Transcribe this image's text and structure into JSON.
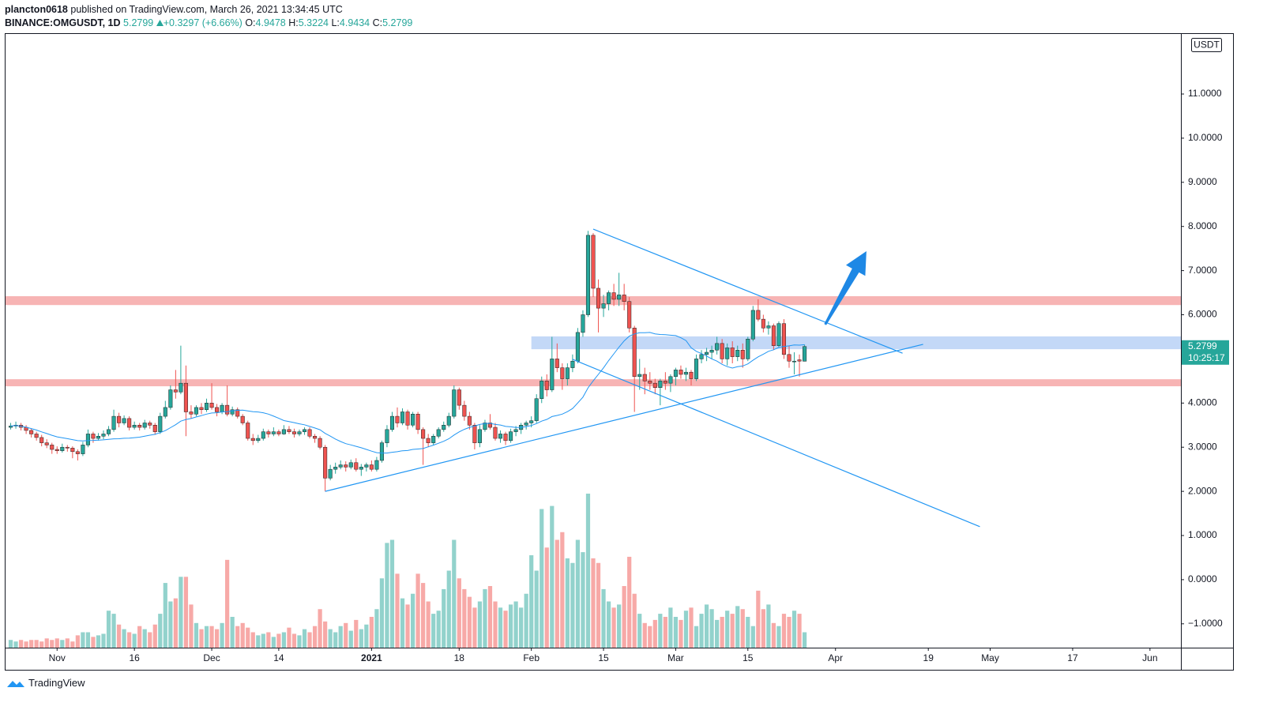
{
  "header": {
    "author": "plancton0618",
    "published": "published on TradingView.com, March 26, 2021 13:34:45 UTC",
    "symbol": "BINANCE:OMGUSDT, 1D",
    "last": "5.2799",
    "change": "+0.3297 (+6.66%)",
    "ohlc_legend": [
      {
        "key": "O:",
        "value": "4.9478"
      },
      {
        "key": "H:",
        "value": "5.3224"
      },
      {
        "key": "L:",
        "value": "4.9434"
      },
      {
        "key": "C:",
        "value": "5.2799"
      }
    ]
  },
  "footer": {
    "brand": "TradingView"
  },
  "chart_data": {
    "type": "candlestick",
    "currency": "USDT",
    "price_label": "5.2799",
    "countdown": "10:25:17",
    "up_color": "#26a69a",
    "down_color": "#ef5350",
    "ma_color": "#2196f3",
    "xlim": [
      "2020-10-22",
      "2021-06-07"
    ],
    "ylim": [
      -1.54,
      12.36
    ],
    "yticks": [
      {
        "value": -1,
        "label": "−1.0000"
      },
      {
        "value": 0,
        "label": "0.0000"
      },
      {
        "value": 1,
        "label": "1.0000"
      },
      {
        "value": 2,
        "label": "2.0000"
      },
      {
        "value": 3,
        "label": "3.0000"
      },
      {
        "value": 4,
        "label": "4.0000"
      },
      {
        "value": 6,
        "label": "6.0000"
      },
      {
        "value": 7,
        "label": "7.0000"
      },
      {
        "value": 8,
        "label": "8.0000"
      },
      {
        "value": 9,
        "label": "9.0000"
      },
      {
        "value": 10,
        "label": "10.0000"
      },
      {
        "value": 11,
        "label": "11.0000"
      }
    ],
    "xticks": [
      {
        "value": "2020-11-01",
        "label": "Nov"
      },
      {
        "value": "2020-11-16",
        "label": "16"
      },
      {
        "value": "2020-12-01",
        "label": "Dec"
      },
      {
        "value": "2020-12-14",
        "label": "14"
      },
      {
        "value": "2021-01-01",
        "label": "2021"
      },
      {
        "value": "2021-01-18",
        "label": "18"
      },
      {
        "value": "2021-02-01",
        "label": "Feb"
      },
      {
        "value": "2021-02-15",
        "label": "15"
      },
      {
        "value": "2021-03-01",
        "label": "Mar"
      },
      {
        "value": "2021-03-15",
        "label": "15"
      },
      {
        "value": "2021-04-01",
        "label": "Apr"
      },
      {
        "value": "2021-04-19",
        "label": "19"
      },
      {
        "value": "2021-05-01",
        "label": "May"
      },
      {
        "value": "2021-05-17",
        "label": "17"
      },
      {
        "value": "2021-06-01",
        "label": "Jun"
      }
    ],
    "zones": [
      {
        "low": 6.22,
        "high": 6.42,
        "color": "#f7b4b4"
      },
      {
        "from": "2021-02-01",
        "low": 5.22,
        "high": 5.51,
        "color": "#c3d8f7"
      },
      {
        "low": 4.38,
        "high": 4.54,
        "color": "#f7b4b4"
      }
    ],
    "trendlines": [
      {
        "x": [
          "2021-02-13",
          "2021-04-14"
        ],
        "y": [
          7.94,
          5.13
        ]
      },
      {
        "x": [
          "2021-02-09",
          "2021-04-29"
        ],
        "y": [
          4.99,
          1.2
        ]
      },
      {
        "x": [
          "2020-12-23",
          "2021-04-18"
        ],
        "y": [
          2.0,
          5.33
        ]
      }
    ],
    "arrow": {
      "x": [
        "2021-03-30",
        "2021-04-07"
      ],
      "y": [
        5.78,
        7.44
      ],
      "color": "#1e88e5"
    },
    "x": [
      "2020-10-23",
      "2020-10-24",
      "2020-10-25",
      "2020-10-26",
      "2020-10-27",
      "2020-10-28",
      "2020-10-29",
      "2020-10-30",
      "2020-10-31",
      "2020-11-01",
      "2020-11-02",
      "2020-11-03",
      "2020-11-04",
      "2020-11-05",
      "2020-11-06",
      "2020-11-07",
      "2020-11-08",
      "2020-11-09",
      "2020-11-10",
      "2020-11-11",
      "2020-11-12",
      "2020-11-13",
      "2020-11-14",
      "2020-11-15",
      "2020-11-16",
      "2020-11-17",
      "2020-11-18",
      "2020-11-19",
      "2020-11-20",
      "2020-11-21",
      "2020-11-22",
      "2020-11-23",
      "2020-11-24",
      "2020-11-25",
      "2020-11-26",
      "2020-11-27",
      "2020-11-28",
      "2020-11-29",
      "2020-11-30",
      "2020-12-01",
      "2020-12-02",
      "2020-12-03",
      "2020-12-04",
      "2020-12-05",
      "2020-12-06",
      "2020-12-07",
      "2020-12-08",
      "2020-12-09",
      "2020-12-10",
      "2020-12-11",
      "2020-12-12",
      "2020-12-13",
      "2020-12-14",
      "2020-12-15",
      "2020-12-16",
      "2020-12-17",
      "2020-12-18",
      "2020-12-19",
      "2020-12-20",
      "2020-12-21",
      "2020-12-22",
      "2020-12-23",
      "2020-12-24",
      "2020-12-25",
      "2020-12-26",
      "2020-12-27",
      "2020-12-28",
      "2020-12-29",
      "2020-12-30",
      "2020-12-31",
      "2021-01-01",
      "2021-01-02",
      "2021-01-03",
      "2021-01-04",
      "2021-01-05",
      "2021-01-06",
      "2021-01-07",
      "2021-01-08",
      "2021-01-09",
      "2021-01-10",
      "2021-01-11",
      "2021-01-12",
      "2021-01-13",
      "2021-01-14",
      "2021-01-15",
      "2021-01-16",
      "2021-01-17",
      "2021-01-18",
      "2021-01-19",
      "2021-01-20",
      "2021-01-21",
      "2021-01-22",
      "2021-01-23",
      "2021-01-24",
      "2021-01-25",
      "2021-01-26",
      "2021-01-27",
      "2021-01-28",
      "2021-01-29",
      "2021-01-30",
      "2021-01-31",
      "2021-02-01",
      "2021-02-02",
      "2021-02-03",
      "2021-02-04",
      "2021-02-05",
      "2021-02-06",
      "2021-02-07",
      "2021-02-08",
      "2021-02-09",
      "2021-02-10",
      "2021-02-11",
      "2021-02-12",
      "2021-02-13",
      "2021-02-14",
      "2021-02-15",
      "2021-02-16",
      "2021-02-17",
      "2021-02-18",
      "2021-02-19",
      "2021-02-20",
      "2021-02-21",
      "2021-02-22",
      "2021-02-23",
      "2021-02-24",
      "2021-02-25",
      "2021-02-26",
      "2021-02-27",
      "2021-02-28",
      "2021-03-01",
      "2021-03-02",
      "2021-03-03",
      "2021-03-04",
      "2021-03-05",
      "2021-03-06",
      "2021-03-07",
      "2021-03-08",
      "2021-03-09",
      "2021-03-10",
      "2021-03-11",
      "2021-03-12",
      "2021-03-13",
      "2021-03-14",
      "2021-03-15",
      "2021-03-16",
      "2021-03-17",
      "2021-03-18",
      "2021-03-19",
      "2021-03-20",
      "2021-03-21",
      "2021-03-22",
      "2021-03-23",
      "2021-03-24",
      "2021-03-25",
      "2021-03-26"
    ],
    "ohlc": [
      [
        3.45,
        3.55,
        3.4,
        3.48
      ],
      [
        3.48,
        3.58,
        3.42,
        3.5
      ],
      [
        3.5,
        3.55,
        3.38,
        3.45
      ],
      [
        3.45,
        3.5,
        3.3,
        3.38
      ],
      [
        3.38,
        3.42,
        3.22,
        3.3
      ],
      [
        3.3,
        3.35,
        3.15,
        3.22
      ],
      [
        3.22,
        3.28,
        3.02,
        3.1
      ],
      [
        3.1,
        3.18,
        2.98,
        3.05
      ],
      [
        3.05,
        3.1,
        2.85,
        2.95
      ],
      [
        2.95,
        3.02,
        2.85,
        2.92
      ],
      [
        2.92,
        3.08,
        2.88,
        3.0
      ],
      [
        3.0,
        3.05,
        2.9,
        2.98
      ],
      [
        2.98,
        3.02,
        2.75,
        2.9
      ],
      [
        2.9,
        2.95,
        2.7,
        2.85
      ],
      [
        2.85,
        3.12,
        2.8,
        3.05
      ],
      [
        3.05,
        3.4,
        3.0,
        3.3
      ],
      [
        3.3,
        3.35,
        3.1,
        3.2
      ],
      [
        3.2,
        3.32,
        3.15,
        3.25
      ],
      [
        3.25,
        3.38,
        3.18,
        3.3
      ],
      [
        3.3,
        3.48,
        3.25,
        3.4
      ],
      [
        3.4,
        3.85,
        3.35,
        3.7
      ],
      [
        3.7,
        3.78,
        3.45,
        3.55
      ],
      [
        3.55,
        3.72,
        3.5,
        3.65
      ],
      [
        3.65,
        3.7,
        3.38,
        3.45
      ],
      [
        3.45,
        3.58,
        3.4,
        3.5
      ],
      [
        3.5,
        3.55,
        3.38,
        3.45
      ],
      [
        3.45,
        3.62,
        3.4,
        3.55
      ],
      [
        3.55,
        3.6,
        3.42,
        3.5
      ],
      [
        3.5,
        3.55,
        3.28,
        3.35
      ],
      [
        3.35,
        3.78,
        3.3,
        3.7
      ],
      [
        3.7,
        4.05,
        3.65,
        3.9
      ],
      [
        3.9,
        4.4,
        3.85,
        4.3
      ],
      [
        4.3,
        4.75,
        4.1,
        4.25
      ],
      [
        4.25,
        5.3,
        4.2,
        4.45
      ],
      [
        4.45,
        4.85,
        3.25,
        3.8
      ],
      [
        3.8,
        3.95,
        3.65,
        3.75
      ],
      [
        3.75,
        3.95,
        3.7,
        3.9
      ],
      [
        3.9,
        4.0,
        3.75,
        3.85
      ],
      [
        3.85,
        4.1,
        3.8,
        4.0
      ],
      [
        4.0,
        4.45,
        3.85,
        3.9
      ],
      [
        3.9,
        3.98,
        3.7,
        3.8
      ],
      [
        3.8,
        4.0,
        3.75,
        3.95
      ],
      [
        3.95,
        4.4,
        3.7,
        3.75
      ],
      [
        3.75,
        3.92,
        3.7,
        3.85
      ],
      [
        3.85,
        3.9,
        3.65,
        3.7
      ],
      [
        3.7,
        3.75,
        3.5,
        3.55
      ],
      [
        3.55,
        3.6,
        3.15,
        3.2
      ],
      [
        3.2,
        3.3,
        3.05,
        3.15
      ],
      [
        3.15,
        3.28,
        3.1,
        3.2
      ],
      [
        3.2,
        3.42,
        3.15,
        3.35
      ],
      [
        3.35,
        3.4,
        3.22,
        3.3
      ],
      [
        3.3,
        3.45,
        3.25,
        3.35
      ],
      [
        3.35,
        3.4,
        3.25,
        3.3
      ],
      [
        3.3,
        3.5,
        3.28,
        3.4
      ],
      [
        3.4,
        3.48,
        3.3,
        3.35
      ],
      [
        3.35,
        3.42,
        3.22,
        3.3
      ],
      [
        3.3,
        3.4,
        3.25,
        3.35
      ],
      [
        3.35,
        3.45,
        3.28,
        3.4
      ],
      [
        3.4,
        3.45,
        3.2,
        3.25
      ],
      [
        3.25,
        3.3,
        3.1,
        3.2
      ],
      [
        3.2,
        3.25,
        2.95,
        3.0
      ],
      [
        3.0,
        3.05,
        2.0,
        2.3
      ],
      [
        2.3,
        2.6,
        2.25,
        2.5
      ],
      [
        2.5,
        2.65,
        2.4,
        2.55
      ],
      [
        2.55,
        2.7,
        2.5,
        2.6
      ],
      [
        2.6,
        2.68,
        2.45,
        2.55
      ],
      [
        2.55,
        2.72,
        2.5,
        2.65
      ],
      [
        2.65,
        2.75,
        2.45,
        2.5
      ],
      [
        2.5,
        2.62,
        2.35,
        2.55
      ],
      [
        2.55,
        2.65,
        2.45,
        2.6
      ],
      [
        2.6,
        2.7,
        2.45,
        2.5
      ],
      [
        2.5,
        2.78,
        2.45,
        2.7
      ],
      [
        2.7,
        3.15,
        2.65,
        3.1
      ],
      [
        3.1,
        3.5,
        3.0,
        3.4
      ],
      [
        3.4,
        3.8,
        3.35,
        3.7
      ],
      [
        3.7,
        3.9,
        3.45,
        3.55
      ],
      [
        3.55,
        3.88,
        3.5,
        3.8
      ],
      [
        3.8,
        3.85,
        3.4,
        3.5
      ],
      [
        3.5,
        3.8,
        3.45,
        3.75
      ],
      [
        3.75,
        3.8,
        3.3,
        3.4
      ],
      [
        3.4,
        3.45,
        2.6,
        3.2
      ],
      [
        3.2,
        3.3,
        3.0,
        3.1
      ],
      [
        3.1,
        3.3,
        3.05,
        3.25
      ],
      [
        3.25,
        3.45,
        3.2,
        3.4
      ],
      [
        3.4,
        3.58,
        3.35,
        3.5
      ],
      [
        3.5,
        3.78,
        3.45,
        3.7
      ],
      [
        3.7,
        4.4,
        3.65,
        4.3
      ],
      [
        4.3,
        4.35,
        3.85,
        3.95
      ],
      [
        3.95,
        4.05,
        3.6,
        3.7
      ],
      [
        3.7,
        3.8,
        3.4,
        3.5
      ],
      [
        3.5,
        3.55,
        2.95,
        3.1
      ],
      [
        3.1,
        3.5,
        3.0,
        3.4
      ],
      [
        3.4,
        3.62,
        3.35,
        3.55
      ],
      [
        3.55,
        3.75,
        3.4,
        3.45
      ],
      [
        3.45,
        3.55,
        3.15,
        3.2
      ],
      [
        3.2,
        3.38,
        3.1,
        3.3
      ],
      [
        3.3,
        3.35,
        3.05,
        3.15
      ],
      [
        3.15,
        3.42,
        3.1,
        3.35
      ],
      [
        3.35,
        3.48,
        3.25,
        3.4
      ],
      [
        3.4,
        3.55,
        3.3,
        3.5
      ],
      [
        3.5,
        3.6,
        3.4,
        3.55
      ],
      [
        3.55,
        3.7,
        3.45,
        3.6
      ],
      [
        3.6,
        4.2,
        3.55,
        4.1
      ],
      [
        4.1,
        4.6,
        4.0,
        4.5
      ],
      [
        4.5,
        4.65,
        4.15,
        4.3
      ],
      [
        4.3,
        5.5,
        4.25,
        5.0
      ],
      [
        5.0,
        5.35,
        4.7,
        4.8
      ],
      [
        4.8,
        4.9,
        4.3,
        4.55
      ],
      [
        4.55,
        4.9,
        4.4,
        4.8
      ],
      [
        4.8,
        5.1,
        4.7,
        4.95
      ],
      [
        4.95,
        5.7,
        4.9,
        5.6
      ],
      [
        5.6,
        6.1,
        5.5,
        6.0
      ],
      [
        6.0,
        7.9,
        5.95,
        7.8
      ],
      [
        7.8,
        7.85,
        6.4,
        6.6
      ],
      [
        6.6,
        6.8,
        5.6,
        6.15
      ],
      [
        6.15,
        6.45,
        5.95,
        6.25
      ],
      [
        6.25,
        6.55,
        6.1,
        6.5
      ],
      [
        6.5,
        6.7,
        6.2,
        6.35
      ],
      [
        6.35,
        6.95,
        6.2,
        6.45
      ],
      [
        6.45,
        6.7,
        6.1,
        6.3
      ],
      [
        6.3,
        6.4,
        5.6,
        5.7
      ],
      [
        5.7,
        5.75,
        3.8,
        4.6
      ],
      [
        4.6,
        5.0,
        4.3,
        4.65
      ],
      [
        4.65,
        4.8,
        4.2,
        4.5
      ],
      [
        4.5,
        4.7,
        4.3,
        4.45
      ],
      [
        4.45,
        4.55,
        4.2,
        4.35
      ],
      [
        4.35,
        4.55,
        3.95,
        4.5
      ],
      [
        4.5,
        4.7,
        4.3,
        4.45
      ],
      [
        4.45,
        4.65,
        4.25,
        4.6
      ],
      [
        4.6,
        4.8,
        4.4,
        4.75
      ],
      [
        4.75,
        4.85,
        4.55,
        4.65
      ],
      [
        4.65,
        4.8,
        4.5,
        4.7
      ],
      [
        4.7,
        4.75,
        4.4,
        4.55
      ],
      [
        4.55,
        5.1,
        4.5,
        5.0
      ],
      [
        5.0,
        5.2,
        4.9,
        5.1
      ],
      [
        5.1,
        5.25,
        4.95,
        5.15
      ],
      [
        5.15,
        5.3,
        5.0,
        5.2
      ],
      [
        5.2,
        5.5,
        5.1,
        5.35
      ],
      [
        5.35,
        5.45,
        4.9,
        5.0
      ],
      [
        5.0,
        5.35,
        4.85,
        5.25
      ],
      [
        5.25,
        5.4,
        4.9,
        5.05
      ],
      [
        5.05,
        5.3,
        4.95,
        5.2
      ],
      [
        5.2,
        5.35,
        4.8,
        5.0
      ],
      [
        5.0,
        5.5,
        4.95,
        5.45
      ],
      [
        5.45,
        6.2,
        5.4,
        6.1
      ],
      [
        6.1,
        6.35,
        5.85,
        5.9
      ],
      [
        5.9,
        6.0,
        5.6,
        5.7
      ],
      [
        5.7,
        5.85,
        5.55,
        5.75
      ],
      [
        5.75,
        5.8,
        5.2,
        5.3
      ],
      [
        5.3,
        5.85,
        5.25,
        5.8
      ],
      [
        5.8,
        5.9,
        5.0,
        5.1
      ],
      [
        5.1,
        5.3,
        4.8,
        4.95
      ],
      [
        4.95,
        5.15,
        4.65,
        4.95
      ],
      [
        4.98,
        5.1,
        4.6,
        4.95
      ],
      [
        4.9478,
        5.3224,
        4.9434,
        5.2799
      ]
    ],
    "volume": [
      5,
      4,
      5,
      4,
      5,
      5,
      4,
      6,
      5,
      6,
      5,
      6,
      4,
      8,
      10,
      10,
      7,
      8,
      9,
      24,
      22,
      15,
      12,
      10,
      9,
      14,
      12,
      10,
      15,
      22,
      42,
      30,
      32,
      46,
      46,
      28,
      16,
      12,
      14,
      14,
      12,
      16,
      57,
      20,
      14,
      16,
      13,
      10,
      8,
      9,
      10,
      7,
      9,
      10,
      13,
      9,
      8,
      12,
      10,
      14,
      25,
      17,
      12,
      10,
      14,
      16,
      11,
      18,
      12,
      15,
      20,
      25,
      45,
      68,
      70,
      48,
      32,
      28,
      35,
      48,
      42,
      30,
      22,
      24,
      38,
      50,
      70,
      45,
      38,
      33,
      26,
      30,
      38,
      40,
      30,
      26,
      24,
      28,
      30,
      26,
      35,
      60,
      50,
      90,
      65,
      92,
      70,
      75,
      58,
      55,
      70,
      62,
      100,
      58,
      55,
      38,
      30,
      26,
      28,
      40,
      59,
      35,
      22,
      16,
      14,
      18,
      22,
      20,
      26,
      20,
      18,
      24,
      26,
      14,
      22,
      28,
      25,
      18,
      20,
      24,
      22,
      27,
      25,
      20,
      14,
      37,
      25,
      28,
      16,
      14,
      22,
      20,
      24,
      22,
      10
    ]
  }
}
